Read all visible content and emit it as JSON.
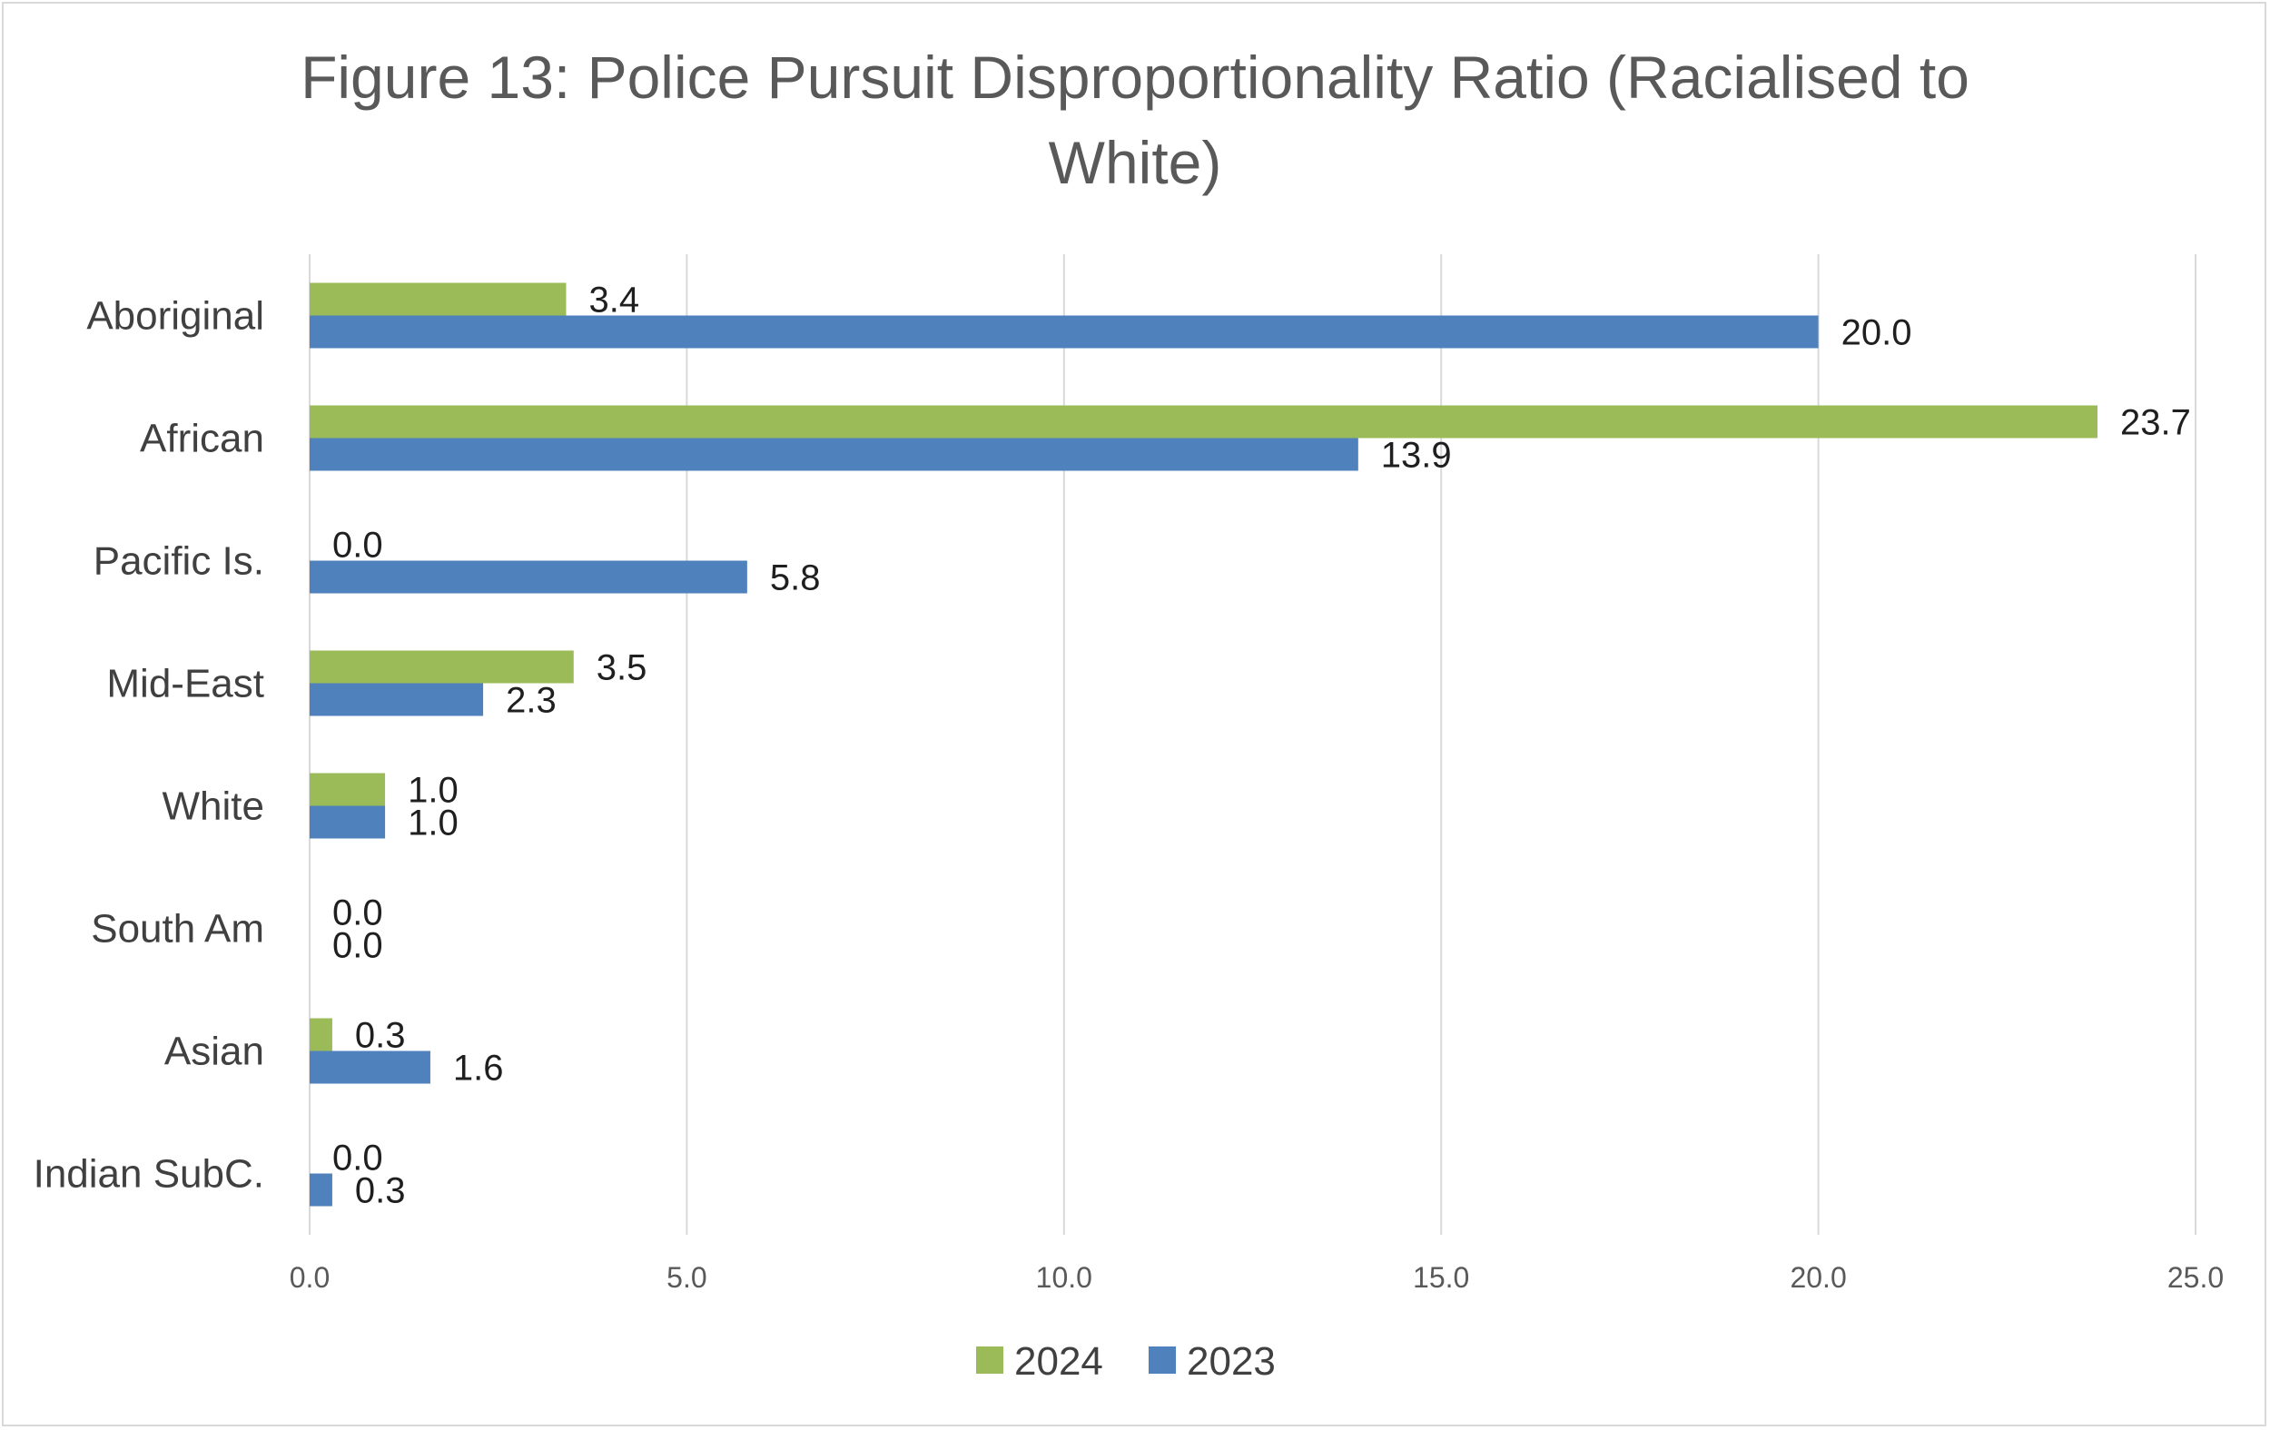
{
  "chart_data": {
    "type": "bar",
    "orientation": "horizontal",
    "title": "Figure 13: Police Pursuit Disproportionality Ratio (Racialised to White)",
    "title_lines": [
      "Figure 13: Police Pursuit Disproportionality Ratio (Racialised to",
      "White)"
    ],
    "categories": [
      "Aboriginal",
      "African",
      "Pacific Is.",
      "Mid-East",
      "White",
      "South Am",
      "Asian",
      "Indian SubC."
    ],
    "series": [
      {
        "name": "2024",
        "color": "#9bbb59",
        "values": [
          3.4,
          23.7,
          0.0,
          3.5,
          1.0,
          0.0,
          0.3,
          0.0
        ],
        "labels": [
          "3.4",
          "23.7",
          "0.0",
          "3.5",
          "1.0",
          "0.0",
          "0.3",
          "0.0"
        ]
      },
      {
        "name": "2023",
        "color": "#4f81bd",
        "values": [
          20.0,
          13.9,
          5.8,
          2.3,
          1.0,
          0.0,
          1.6,
          0.3
        ],
        "labels": [
          "20.0",
          "13.9",
          "5.8",
          "2.3",
          "1.0",
          "0.0",
          "1.6",
          "0.3"
        ]
      }
    ],
    "xlim": [
      0,
      25
    ],
    "xticks": [
      0,
      5,
      10,
      15,
      20,
      25
    ],
    "xtick_labels": [
      "0.0",
      "5.0",
      "10.0",
      "15.0",
      "20.0",
      "25.0"
    ],
    "xlabel": "",
    "ylabel": "",
    "grid": true,
    "legend": {
      "position": "bottom",
      "entries": [
        "2024",
        "2023"
      ]
    }
  }
}
